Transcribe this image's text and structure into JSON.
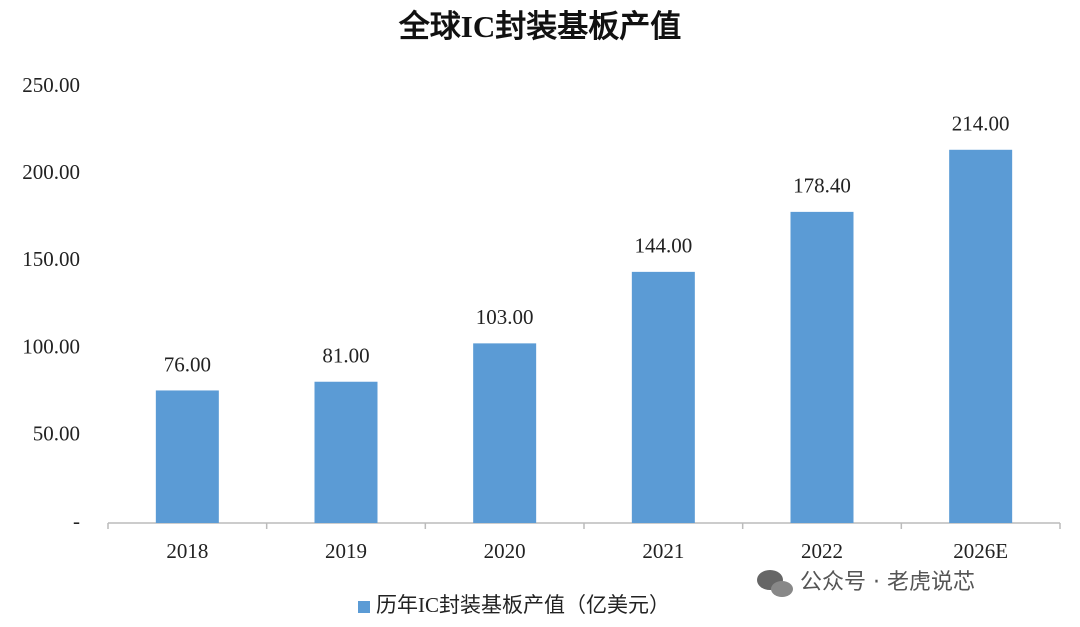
{
  "chart_data": {
    "type": "bar",
    "title": "全球IC封装基板产值",
    "categories": [
      "2018",
      "2019",
      "2020",
      "2021",
      "2022",
      "2026E"
    ],
    "series": [
      {
        "name": "历年IC封装基板产值（亿美元）",
        "color": "#5b9bd5",
        "values": [
          76,
          81,
          103,
          144,
          178.4,
          214
        ],
        "value_labels": [
          "76.00",
          "81.00",
          "103.00",
          "144.00",
          "178.40",
          "214.00"
        ]
      }
    ],
    "ylim": [
      0,
      250
    ],
    "yticks": [
      {
        "value": 0,
        "label": "-"
      },
      {
        "value": 50,
        "label": "50.00"
      },
      {
        "value": 100,
        "label": "100.00"
      },
      {
        "value": 150,
        "label": "150.00"
      },
      {
        "value": 200,
        "label": "200.00"
      },
      {
        "value": 250,
        "label": "250.00"
      }
    ],
    "legend": "bottom",
    "watermark": "公众号 · 老虎说芯"
  }
}
